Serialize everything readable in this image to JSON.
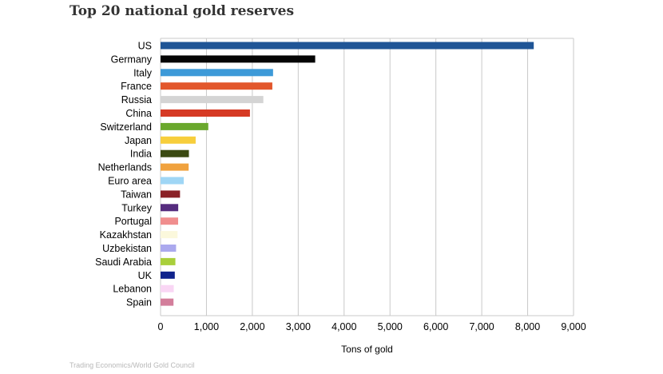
{
  "page": {
    "title": "Top 20 national gold reserves",
    "source": "Trading Economics/World Gold Council"
  },
  "chart_data": {
    "type": "bar",
    "orientation": "horizontal",
    "title": "",
    "xlabel": "Tons of gold",
    "ylabel": "",
    "xlim": [
      0,
      9000
    ],
    "xticks": [
      0,
      1000,
      2000,
      3000,
      4000,
      5000,
      6000,
      7000,
      8000,
      9000
    ],
    "xtick_labels": [
      "0",
      "1,000",
      "2,000",
      "3,000",
      "4,000",
      "5,000",
      "6,000",
      "7,000",
      "8,000",
      "9,000"
    ],
    "grid": true,
    "categories": [
      "US",
      "Germany",
      "Italy",
      "France",
      "Russia",
      "China",
      "Switzerland",
      "Japan",
      "India",
      "Netherlands",
      "Euro area",
      "Taiwan",
      "Turkey",
      "Portugal",
      "Kazakhstan",
      "Uzbekistan",
      "Saudi Arabia",
      "UK",
      "Lebanon",
      "Spain"
    ],
    "values": [
      8133,
      3370,
      2452,
      2436,
      2240,
      1948,
      1040,
      765,
      618,
      612,
      505,
      424,
      385,
      383,
      370,
      338,
      323,
      310,
      287,
      282
    ],
    "colors": [
      "#1f5596",
      "#050505",
      "#3d9ad8",
      "#e2572c",
      "#d4d4d4",
      "#d63a24",
      "#6aa82d",
      "#f7ce3c",
      "#3b4a12",
      "#f0a23e",
      "#9fd6f5",
      "#8a2126",
      "#552c7e",
      "#f08e8e",
      "#fbf8dc",
      "#aba9ee",
      "#a9cf3c",
      "#10238c",
      "#f9d6f4",
      "#d37e9b"
    ]
  }
}
